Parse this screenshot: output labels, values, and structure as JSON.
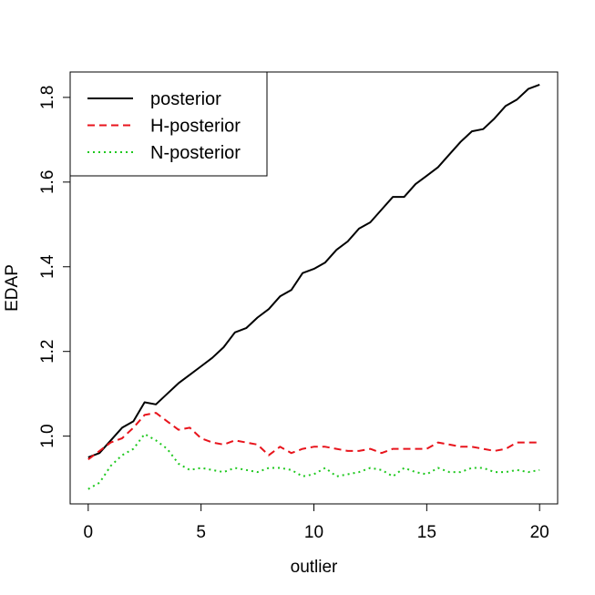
{
  "chart_data": {
    "type": "line",
    "title": "",
    "xlabel": "outlier",
    "ylabel": "EDAP",
    "xlim": [
      -0.8,
      20.8
    ],
    "ylim": [
      0.84,
      1.86
    ],
    "xticks": [
      0,
      5,
      10,
      15,
      20
    ],
    "yticks": [
      1.0,
      1.2,
      1.4,
      1.6,
      1.8
    ],
    "ytick_labels": [
      "1.0",
      "1.2",
      "1.4",
      "1.6",
      "1.8"
    ],
    "grid": false,
    "legend_position": "top-left",
    "series": [
      {
        "name": "posterior",
        "color": "#000000",
        "dash": "solid",
        "x": [
          0,
          0.5,
          1,
          1.5,
          2,
          2.5,
          3,
          3.5,
          4,
          4.5,
          5,
          5.5,
          6,
          6.5,
          7,
          7.5,
          8,
          8.5,
          9,
          9.5,
          10,
          10.5,
          11,
          11.5,
          12,
          12.5,
          13,
          13.5,
          14,
          14.5,
          15,
          15.5,
          16,
          16.5,
          17,
          17.5,
          18,
          18.5,
          19,
          19.5,
          20
        ],
        "y": [
          0.95,
          0.96,
          0.99,
          1.02,
          1.035,
          1.08,
          1.075,
          1.1,
          1.125,
          1.145,
          1.165,
          1.185,
          1.21,
          1.245,
          1.255,
          1.28,
          1.3,
          1.33,
          1.345,
          1.385,
          1.395,
          1.41,
          1.44,
          1.46,
          1.49,
          1.505,
          1.535,
          1.565,
          1.565,
          1.595,
          1.615,
          1.635,
          1.665,
          1.695,
          1.72,
          1.725,
          1.75,
          1.78,
          1.795,
          1.82,
          1.83
        ]
      },
      {
        "name": "H-posterior",
        "color": "#e8141c",
        "dash": "dashed",
        "x": [
          0,
          0.5,
          1,
          1.5,
          2,
          2.5,
          3,
          3.5,
          4,
          4.5,
          5,
          5.5,
          6,
          6.5,
          7,
          7.5,
          8,
          8.5,
          9,
          9.5,
          10,
          10.5,
          11,
          11.5,
          12,
          12.5,
          13,
          13.5,
          14,
          14.5,
          15,
          15.5,
          16,
          16.5,
          17,
          17.5,
          18,
          18.5,
          19,
          19.5,
          20
        ],
        "y": [
          0.945,
          0.965,
          0.985,
          0.995,
          1.02,
          1.05,
          1.055,
          1.035,
          1.015,
          1.02,
          0.995,
          0.985,
          0.98,
          0.99,
          0.985,
          0.98,
          0.955,
          0.975,
          0.96,
          0.97,
          0.975,
          0.975,
          0.97,
          0.965,
          0.965,
          0.97,
          0.96,
          0.97,
          0.97,
          0.97,
          0.97,
          0.985,
          0.98,
          0.975,
          0.975,
          0.97,
          0.965,
          0.97,
          0.985,
          0.985,
          0.985
        ]
      },
      {
        "name": "N-posterior",
        "color": "#1ec81e",
        "dash": "dotted",
        "x": [
          0,
          0.5,
          1,
          1.5,
          2,
          2.5,
          3,
          3.5,
          4,
          4.5,
          5,
          5.5,
          6,
          6.5,
          7,
          7.5,
          8,
          8.5,
          9,
          9.5,
          10,
          10.5,
          11,
          11.5,
          12,
          12.5,
          13,
          13.5,
          14,
          14.5,
          15,
          15.5,
          16,
          16.5,
          17,
          17.5,
          18,
          18.5,
          19,
          19.5,
          20
        ],
        "y": [
          0.875,
          0.89,
          0.93,
          0.955,
          0.97,
          1.005,
          0.99,
          0.97,
          0.935,
          0.92,
          0.925,
          0.92,
          0.915,
          0.925,
          0.92,
          0.915,
          0.925,
          0.925,
          0.92,
          0.905,
          0.91,
          0.925,
          0.905,
          0.91,
          0.915,
          0.925,
          0.92,
          0.905,
          0.925,
          0.915,
          0.91,
          0.925,
          0.915,
          0.915,
          0.925,
          0.925,
          0.915,
          0.915,
          0.92,
          0.915,
          0.92
        ]
      }
    ]
  }
}
